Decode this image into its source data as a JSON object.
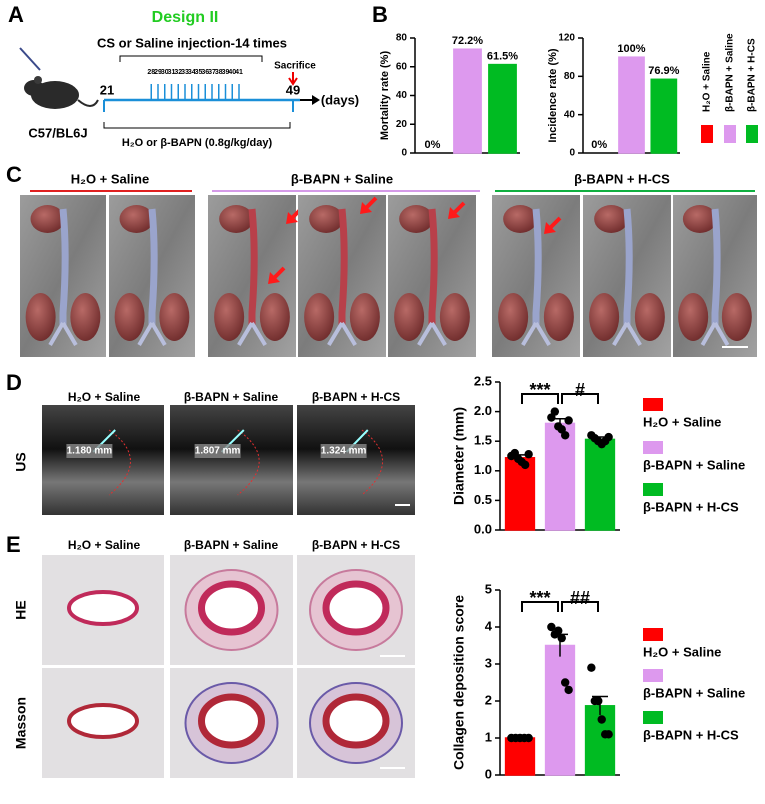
{
  "panel_labels": [
    "A",
    "B",
    "C",
    "D",
    "E"
  ],
  "design": {
    "title": "Design II",
    "injection": "CS or Saline injection-14 times",
    "start": 21,
    "end": 49,
    "injection_days": [
      28,
      29,
      30,
      31,
      32,
      33,
      34,
      35,
      36,
      37,
      38,
      39,
      40,
      41
    ],
    "sacrifice": "Sacrifice",
    "unit": "(days)",
    "mouse": "C57/BL6J",
    "treatment": "H₂O or β-BAPN (0.8g/kg/day)"
  },
  "photos": {
    "groups": [
      "H₂O + Saline",
      "β-BAPN + Saline",
      "β-BAPN + H-CS"
    ]
  },
  "ultrasound": {
    "row_label": "US",
    "columns": [
      "H₂O + Saline",
      "β-BAPN + Saline",
      "β-BAPN + H-CS"
    ],
    "measurements": [
      "1.180 mm",
      "1.807 mm",
      "1.324 mm"
    ]
  },
  "histology": {
    "columns": [
      "H₂O + Saline",
      "β-BAPN + Saline",
      "β-BAPN + H-CS"
    ],
    "rows": [
      "HE",
      "Masson"
    ]
  },
  "chart_data": [
    {
      "type": "bar",
      "y_label": "Mortality rate (%)",
      "categories": [
        "H₂O + Saline",
        "β-BAPN + Saline",
        "β-BAPN + H-CS"
      ],
      "colors": [
        "#ff0000",
        "#dd99ee",
        "#00bb22"
      ],
      "values": [
        0,
        72.2,
        61.5
      ],
      "value_labels": [
        "0%",
        "72.2%",
        "61.5%"
      ],
      "ylim": [
        0,
        80
      ],
      "yticks": [
        0,
        20,
        40,
        60,
        80
      ]
    },
    {
      "type": "bar",
      "y_label": "Incidence rate (%)",
      "colors": [
        "#ff0000",
        "#dd99ee",
        "#00bb22"
      ],
      "values": [
        0,
        100,
        76.9
      ],
      "value_labels": [
        "0%",
        "100%",
        "76.9%"
      ],
      "ylim": [
        0,
        120
      ],
      "yticks": [
        0,
        40,
        80,
        120
      ]
    },
    {
      "type": "bar",
      "y_label": "Diameter (mm)",
      "categories": [
        "H₂O + Saline",
        "β-BAPN + Saline",
        "β-BAPN + H-CS"
      ],
      "colors": [
        "#ff0000",
        "#dd99ee",
        "#00bb22"
      ],
      "values": [
        1.22,
        1.8,
        1.53
      ],
      "errors": [
        0.05,
        0.08,
        0.04
      ],
      "points": [
        [
          1.25,
          1.3,
          1.2,
          1.15,
          1.1,
          1.28
        ],
        [
          1.9,
          2.0,
          1.75,
          1.7,
          1.6,
          1.85
        ],
        [
          1.6,
          1.55,
          1.5,
          1.45,
          1.5,
          1.57
        ]
      ],
      "significance_labels": [
        "***",
        "#"
      ],
      "ylim": [
        0,
        2.5
      ],
      "yticks": [
        {
          "value": 0,
          "label": "0.0"
        },
        0.5,
        {
          "value": 1,
          "label": "1.0"
        },
        1.5,
        {
          "value": 2,
          "label": "2.0"
        },
        2.5
      ]
    },
    {
      "type": "bar",
      "y_label": "Collagen deposition score",
      "categories": [
        "H₂O + Saline",
        "β-BAPN + Saline",
        "β-BAPN + H-CS"
      ],
      "colors": [
        "#ff0000",
        "#dd99ee",
        "#00bb22"
      ],
      "values": [
        1,
        3.5,
        1.87
      ],
      "errors": [
        0,
        0.3,
        0.25
      ],
      "points": [
        [
          1,
          1,
          1,
          1,
          1
        ],
        [
          4,
          3.8,
          3.9,
          3.7,
          2.5,
          2.3
        ],
        [
          2.9,
          2.0,
          2.0,
          1.5,
          1.1,
          1.1
        ]
      ],
      "significance_labels": [
        "***",
        "##"
      ],
      "ylim": [
        0,
        5
      ],
      "yticks": [
        0,
        1,
        2,
        3,
        4,
        5
      ]
    }
  ]
}
